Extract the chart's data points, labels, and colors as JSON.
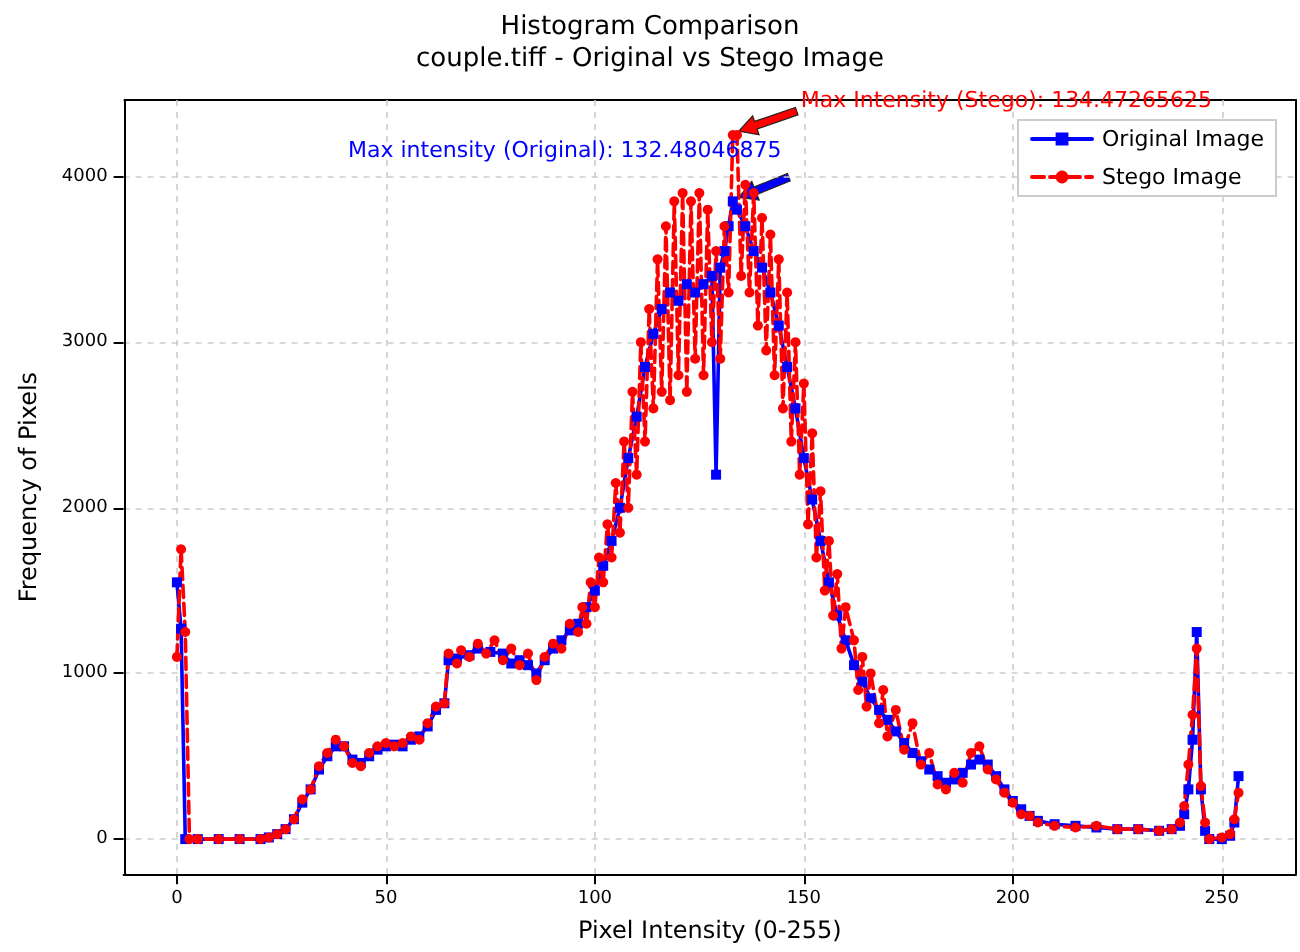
{
  "chart_data": {
    "type": "line",
    "title": "Histogram Comparison",
    "subtitle": "couple.tiff - Original vs Stego Image",
    "xlabel": "Pixel Intensity (0-255)",
    "ylabel": "Frequency of Pixels",
    "xlim": [
      -12.75,
      267.75
    ],
    "xticks": [
      0,
      50,
      100,
      150,
      200,
      250
    ],
    "ylim": [
      -212,
      4462
    ],
    "yticks": [
      0,
      1000,
      2000,
      3000,
      4000
    ],
    "grid": true,
    "legend": "top right",
    "annotations": [
      "Max intensity (Original): 132.48046875",
      "Max Intensity (Stego): 134.47265625"
    ],
    "series": [
      {
        "name": "Original Image",
        "color": "#0000ff",
        "marker": "square",
        "line_style": "solid",
        "x": [
          0,
          1,
          2,
          5,
          10,
          15,
          20,
          22,
          24,
          26,
          28,
          30,
          32,
          34,
          36,
          38,
          40,
          42,
          44,
          46,
          48,
          50,
          52,
          54,
          56,
          58,
          60,
          62,
          64,
          65,
          67,
          70,
          72,
          75,
          78,
          80,
          82,
          84,
          86,
          88,
          90,
          92,
          94,
          96,
          98,
          100,
          102,
          104,
          106,
          108,
          110,
          112,
          114,
          116,
          118,
          120,
          122,
          124,
          126,
          128,
          129,
          130,
          131,
          132,
          133,
          134,
          136,
          138,
          140,
          142,
          144,
          146,
          148,
          150,
          152,
          154,
          156,
          158,
          160,
          162,
          164,
          166,
          168,
          170,
          172,
          174,
          176,
          178,
          180,
          182,
          184,
          186,
          188,
          190,
          192,
          194,
          196,
          198,
          200,
          202,
          204,
          206,
          210,
          215,
          220,
          225,
          230,
          235,
          238,
          240,
          241,
          242,
          243,
          244,
          245,
          246,
          247,
          250,
          252,
          253,
          254
        ],
        "values": [
          1550,
          1270,
          0,
          0,
          0,
          0,
          0,
          10,
          30,
          60,
          120,
          220,
          300,
          420,
          500,
          560,
          560,
          480,
          460,
          500,
          540,
          560,
          570,
          560,
          600,
          620,
          680,
          780,
          820,
          1080,
          1090,
          1110,
          1150,
          1130,
          1120,
          1060,
          1080,
          1050,
          1000,
          1080,
          1150,
          1200,
          1260,
          1300,
          1400,
          1500,
          1650,
          1800,
          2000,
          2300,
          2550,
          2850,
          3050,
          3200,
          3300,
          3250,
          3350,
          3300,
          3350,
          3400,
          2200,
          3450,
          3550,
          3700,
          3850,
          3800,
          3700,
          3550,
          3450,
          3300,
          3100,
          2850,
          2600,
          2300,
          2050,
          1800,
          1550,
          1350,
          1200,
          1050,
          950,
          850,
          780,
          720,
          650,
          580,
          520,
          470,
          420,
          380,
          340,
          360,
          400,
          450,
          480,
          450,
          380,
          300,
          230,
          180,
          140,
          110,
          90,
          80,
          70,
          60,
          60,
          50,
          60,
          80,
          150,
          300,
          600,
          1250,
          300,
          50,
          0,
          0,
          20,
          100,
          380
        ]
      },
      {
        "name": "Stego Image",
        "color": "#ff0000",
        "marker": "circle",
        "line_style": "dashed",
        "x": [
          0,
          1,
          2,
          3,
          5,
          10,
          15,
          20,
          22,
          24,
          26,
          28,
          30,
          32,
          34,
          36,
          38,
          40,
          42,
          44,
          46,
          48,
          50,
          52,
          54,
          56,
          58,
          60,
          62,
          64,
          65,
          67,
          68,
          70,
          72,
          74,
          76,
          78,
          80,
          82,
          84,
          86,
          88,
          90,
          92,
          94,
          96,
          97,
          98,
          99,
          100,
          101,
          102,
          103,
          104,
          105,
          106,
          107,
          108,
          109,
          110,
          111,
          112,
          113,
          114,
          115,
          116,
          117,
          118,
          119,
          120,
          121,
          122,
          123,
          124,
          125,
          126,
          127,
          128,
          129,
          130,
          131,
          132,
          133,
          134,
          135,
          136,
          137,
          138,
          139,
          140,
          141,
          142,
          143,
          144,
          145,
          146,
          147,
          148,
          149,
          150,
          151,
          152,
          153,
          154,
          155,
          156,
          157,
          158,
          159,
          160,
          162,
          163,
          164,
          165,
          166,
          168,
          169,
          170,
          172,
          174,
          176,
          178,
          180,
          182,
          184,
          186,
          188,
          190,
          192,
          194,
          196,
          198,
          200,
          202,
          204,
          206,
          210,
          215,
          220,
          225,
          230,
          235,
          238,
          240,
          241,
          242,
          243,
          244,
          245,
          246,
          247,
          250,
          252,
          253,
          254
        ],
        "values": [
          1100,
          1750,
          1250,
          0,
          0,
          0,
          0,
          0,
          10,
          30,
          60,
          120,
          240,
          300,
          440,
          520,
          600,
          560,
          460,
          440,
          520,
          560,
          580,
          560,
          580,
          620,
          600,
          700,
          800,
          820,
          1120,
          1060,
          1140,
          1100,
          1180,
          1120,
          1200,
          1080,
          1150,
          1050,
          1120,
          960,
          1100,
          1180,
          1150,
          1300,
          1250,
          1400,
          1300,
          1550,
          1400,
          1700,
          1550,
          1900,
          1700,
          2150,
          1850,
          2400,
          2000,
          2700,
          2200,
          3000,
          2400,
          3200,
          2600,
          3500,
          2700,
          3700,
          2650,
          3850,
          2800,
          3900,
          2700,
          3850,
          2900,
          3900,
          2800,
          3800,
          3000,
          3550,
          2900,
          3700,
          3300,
          4250,
          4250,
          3400,
          3950,
          3300,
          3900,
          3100,
          3750,
          2950,
          3650,
          2800,
          3500,
          2600,
          3300,
          2400,
          3000,
          2200,
          2750,
          1900,
          2450,
          1700,
          2100,
          1500,
          1800,
          1350,
          1600,
          1150,
          1400,
          1200,
          900,
          1100,
          800,
          1000,
          700,
          900,
          620,
          780,
          540,
          700,
          450,
          520,
          330,
          300,
          400,
          340,
          520,
          560,
          420,
          360,
          280,
          220,
          150,
          140,
          100,
          80,
          70,
          80,
          60,
          60,
          50,
          60,
          100,
          200,
          450,
          750,
          1150,
          320,
          100,
          0,
          10,
          30,
          120,
          280
        ]
      }
    ]
  }
}
